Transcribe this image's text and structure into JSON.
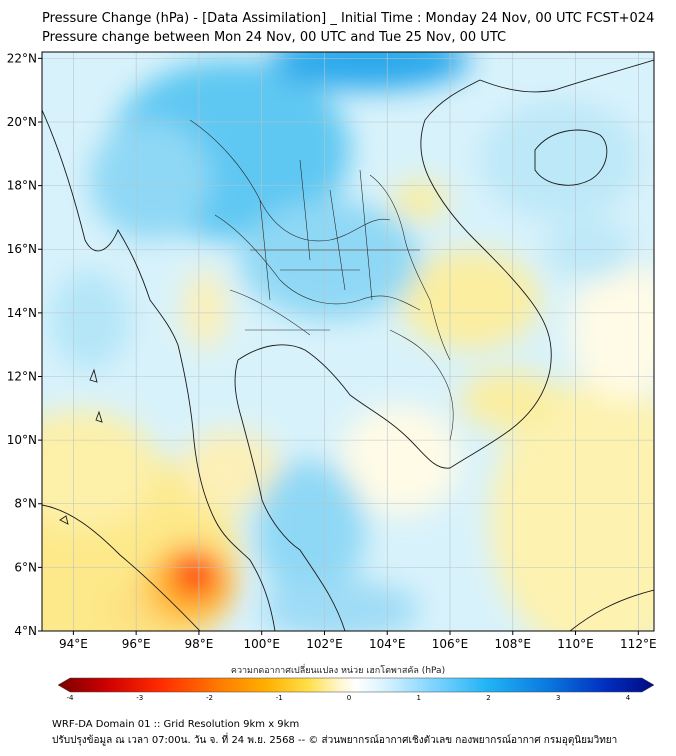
{
  "title_line1": "Pressure Change (hPa) - [Data Assimilation] _ Initial Time : Monday 24 Nov, 00 UTC FCST+024",
  "title_line2": "Pressure change between Mon 24 Nov, 00 UTC and Tue 25 Nov, 00 UTC",
  "map": {
    "lon_range": [
      93,
      112.5
    ],
    "lat_range": [
      4,
      22.2
    ],
    "lon_ticks": [
      "94°E",
      "96°E",
      "98°E",
      "100°E",
      "102°E",
      "104°E",
      "106°E",
      "108°E",
      "110°E",
      "112°E"
    ],
    "lat_ticks": [
      "4°N",
      "6°N",
      "8°N",
      "10°N",
      "12°N",
      "14°N",
      "16°N",
      "18°N",
      "20°N",
      "22°N"
    ],
    "gridlines": true
  },
  "colorbar": {
    "title": "ความกดอากาศเปลี่ยนแปลง หน่วย เฮกโตพาสคัล (hPa)",
    "range": [
      -4,
      4
    ],
    "tick_labels": [
      "-4",
      "-3",
      "-2",
      "-1",
      "0",
      "1",
      "2",
      "3",
      "4"
    ],
    "colors": [
      "#7a0000",
      "#cc0000",
      "#ff2a00",
      "#ff7a00",
      "#ffb000",
      "#ffe04a",
      "#fff5c8",
      "#ffffff",
      "#d6f2ff",
      "#7fd4ff",
      "#21b4f5",
      "#0a7ae0",
      "#002ec0",
      "#000a80"
    ]
  },
  "footer_line1": "WRF-DA Domain 01 :: Grid Resolution 9km x 9km",
  "footer_line2": "ปรับปรุงข้อมูล ณ เวลา 07:00น. วัน จ. ที่ 24 พ.ย. 2568 -- © ส่วนพยากรณ์อากาศเชิงตัวเลข กองพยากรณ์อากาศ กรมอุตุนิยมวิทยา"
}
